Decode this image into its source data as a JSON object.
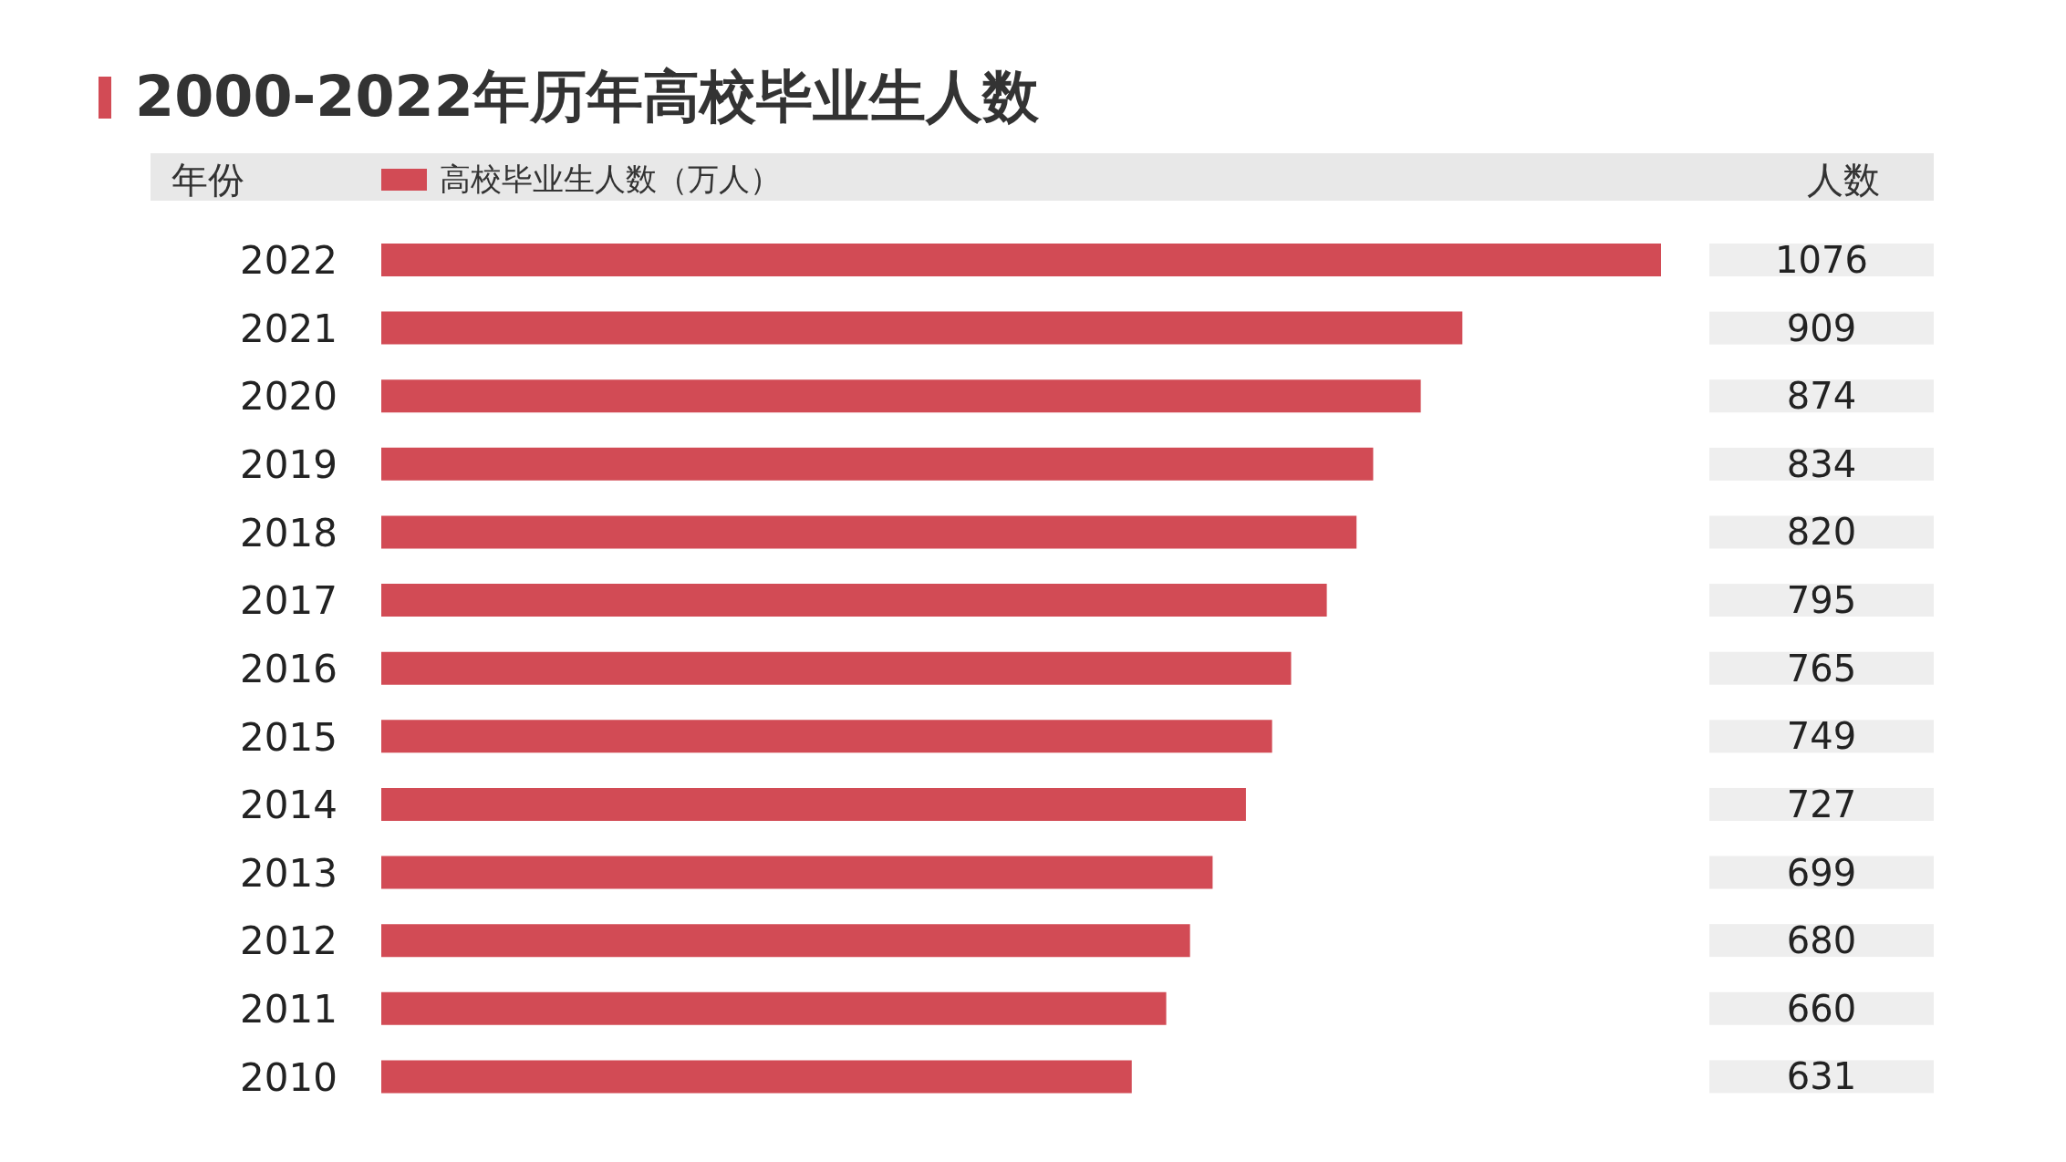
{
  "chart_data": {
    "type": "bar",
    "orientation": "horizontal",
    "title": "2000-2022年历年高校毕业生人数",
    "ylabel": "年份",
    "annotations": [
      "人数"
    ],
    "categories": [
      "2022",
      "2021",
      "2020",
      "2019",
      "2018",
      "2017",
      "2016",
      "2015",
      "2014",
      "2013",
      "2012",
      "2011",
      "2010"
    ],
    "series": [
      {
        "name": "高校毕业生人数（万人）",
        "color": "#d24b55",
        "values": [
          1076,
          909,
          874,
          834,
          820,
          795,
          765,
          749,
          727,
          699,
          680,
          660,
          631
        ]
      }
    ],
    "data_labels": true,
    "legend": "top",
    "tick_labels": "y"
  }
}
